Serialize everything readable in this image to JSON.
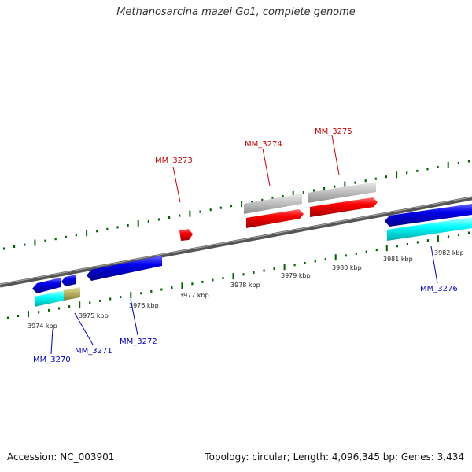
{
  "title": "Methanosarcina mazei Go1, complete genome",
  "footer": {
    "accession": "Accession: NC_003901",
    "summary": "Topology: circular; Length: 4,096,345 bp; Genes: 3,434"
  },
  "colors": {
    "gene_red": "#ff0000",
    "gene_blue": "#0000ee",
    "gene_gray": "#c0c0c0",
    "gene_cyan": "#00ffff",
    "gene_olive": "#bdb76b",
    "tick_green": "#006400",
    "label_red": "#cc0000",
    "label_blue": "#0000cc"
  },
  "scale_labels": [
    "3974 kbp",
    "3975 kbp",
    "3976 kbp",
    "3977 kbp",
    "3978 kbp",
    "3979 kbp",
    "3980 kbp",
    "3981 kbp",
    "3982 kbp"
  ],
  "upper_labels": [
    "MM_3273",
    "MM_3274",
    "MM_3275"
  ],
  "lower_labels": [
    "MM_3270",
    "MM_3271",
    "MM_3272",
    "MM_3276"
  ]
}
